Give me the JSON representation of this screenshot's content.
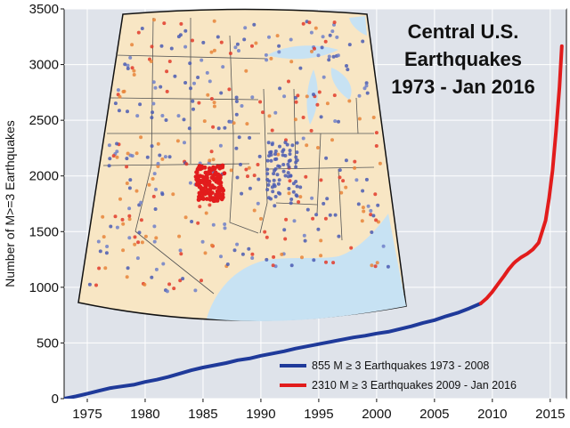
{
  "chart_data": {
    "type": "line",
    "title_lines": [
      "Central U.S.",
      "Earthquakes",
      "1973 - Jan 2016"
    ],
    "xlabel": "",
    "ylabel": "Number of M>=3 Earthquakes",
    "xlim": [
      1973,
      2016.4
    ],
    "ylim": [
      0,
      3500
    ],
    "xticks": [
      1975,
      1980,
      1985,
      1990,
      1995,
      2000,
      2005,
      2010,
      2015
    ],
    "yticks": [
      0,
      500,
      1000,
      1500,
      2000,
      2500,
      3000,
      3500
    ],
    "grid": true,
    "legend_position": "bottom-right",
    "series": [
      {
        "name": "855   M ≥ 3 Earthquakes 1973 - 2008",
        "color": "#1f3a9a",
        "x": [
          1973,
          1974,
          1975,
          1976,
          1977,
          1978,
          1979,
          1980,
          1981,
          1982,
          1983,
          1984,
          1985,
          1986,
          1987,
          1988,
          1989,
          1990,
          1991,
          1992,
          1993,
          1994,
          1995,
          1996,
          1997,
          1998,
          1999,
          2000,
          2001,
          2002,
          2003,
          2004,
          2005,
          2006,
          2007,
          2008,
          2009
        ],
        "y": [
          0,
          20,
          45,
          70,
          95,
          110,
          125,
          150,
          170,
          195,
          225,
          255,
          280,
          300,
          320,
          345,
          360,
          385,
          405,
          425,
          450,
          470,
          490,
          510,
          530,
          550,
          565,
          585,
          600,
          625,
          650,
          680,
          705,
          740,
          770,
          810,
          855
        ]
      },
      {
        "name": "2310 M ≥ 3 Earthquakes 2009 - Jan 2016",
        "color": "#e21c1c",
        "x": [
          2009,
          2009.5,
          2010,
          2010.5,
          2011,
          2011.4,
          2011.8,
          2012,
          2012.5,
          2013,
          2013.5,
          2014,
          2014.3,
          2014.6,
          2014.9,
          2015.2,
          2015.5,
          2015.8,
          2016
        ],
        "y": [
          855,
          900,
          960,
          1030,
          1100,
          1160,
          1210,
          1230,
          1270,
          1300,
          1340,
          1400,
          1500,
          1600,
          1800,
          2050,
          2400,
          2800,
          3165
        ]
      }
    ]
  },
  "inset_map": {
    "label": "Central U.S. earthquake locations map"
  }
}
